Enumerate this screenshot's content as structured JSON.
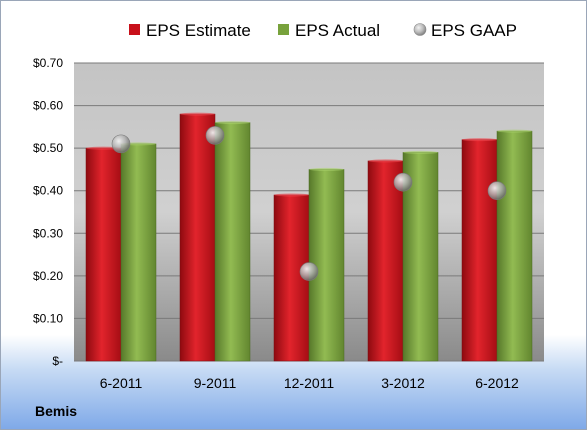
{
  "chart_data": {
    "type": "bar",
    "categories": [
      "6-2011",
      "9-2011",
      "12-2011",
      "3-2012",
      "6-2012"
    ],
    "series": [
      {
        "name": "EPS Estimate",
        "kind": "bar",
        "values": [
          0.5,
          0.58,
          0.39,
          0.47,
          0.52
        ]
      },
      {
        "name": "EPS Actual",
        "kind": "bar",
        "values": [
          0.51,
          0.56,
          0.45,
          0.49,
          0.54
        ]
      },
      {
        "name": "EPS GAAP",
        "kind": "marker",
        "values": [
          0.51,
          0.53,
          0.21,
          0.42,
          0.4
        ]
      }
    ],
    "y_ticks": [
      {
        "value": 0.0,
        "label": "$-"
      },
      {
        "value": 0.1,
        "label": "$0.10"
      },
      {
        "value": 0.2,
        "label": "$0.20"
      },
      {
        "value": 0.3,
        "label": "$0.30"
      },
      {
        "value": 0.4,
        "label": "$0.40"
      },
      {
        "value": 0.5,
        "label": "$0.50"
      },
      {
        "value": 0.6,
        "label": "$0.60"
      },
      {
        "value": 0.7,
        "label": "$0.70"
      }
    ],
    "ylim": [
      0,
      0.7
    ],
    "grid": true,
    "legend_position": "top",
    "colors": {
      "estimate": "#c8101a",
      "actual": "#78a23c",
      "gaap": "#b8b8b8"
    }
  },
  "footer": {
    "company": "Bemis"
  }
}
